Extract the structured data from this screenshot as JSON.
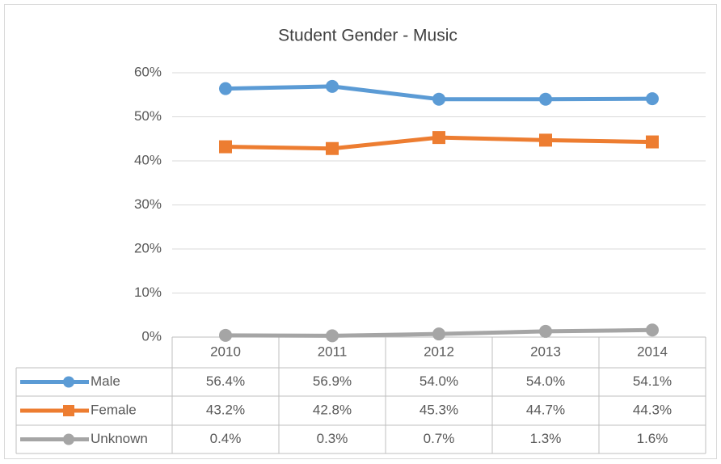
{
  "chart_data": {
    "type": "line",
    "title": "Student Gender - Music",
    "categories": [
      "2010",
      "2011",
      "2012",
      "2013",
      "2014"
    ],
    "series": [
      {
        "name": "Male",
        "color": "#5b9bd5",
        "marker": "circle",
        "values": [
          56.4,
          56.9,
          54.0,
          54.0,
          54.1
        ],
        "value_labels": [
          "56.4%",
          "56.9%",
          "54.0%",
          "54.0%",
          "54.1%"
        ]
      },
      {
        "name": "Female",
        "color": "#ed7d31",
        "marker": "square",
        "values": [
          43.2,
          42.8,
          45.3,
          44.7,
          44.3
        ],
        "value_labels": [
          "43.2%",
          "42.8%",
          "45.3%",
          "44.7%",
          "44.3%"
        ]
      },
      {
        "name": "Unknown",
        "color": "#a5a5a5",
        "marker": "circle",
        "values": [
          0.4,
          0.3,
          0.7,
          1.3,
          1.6
        ],
        "value_labels": [
          "0.4%",
          "0.3%",
          "0.7%",
          "1.3%",
          "1.6%"
        ]
      }
    ],
    "ylim": [
      0,
      60
    ],
    "yticks": [
      {
        "value": 0,
        "label": "0%"
      },
      {
        "value": 10,
        "label": "10%"
      },
      {
        "value": 20,
        "label": "20%"
      },
      {
        "value": 30,
        "label": "30%"
      },
      {
        "value": 40,
        "label": "40%"
      },
      {
        "value": 50,
        "label": "50%"
      },
      {
        "value": 60,
        "label": "60%"
      }
    ],
    "grid": true
  }
}
